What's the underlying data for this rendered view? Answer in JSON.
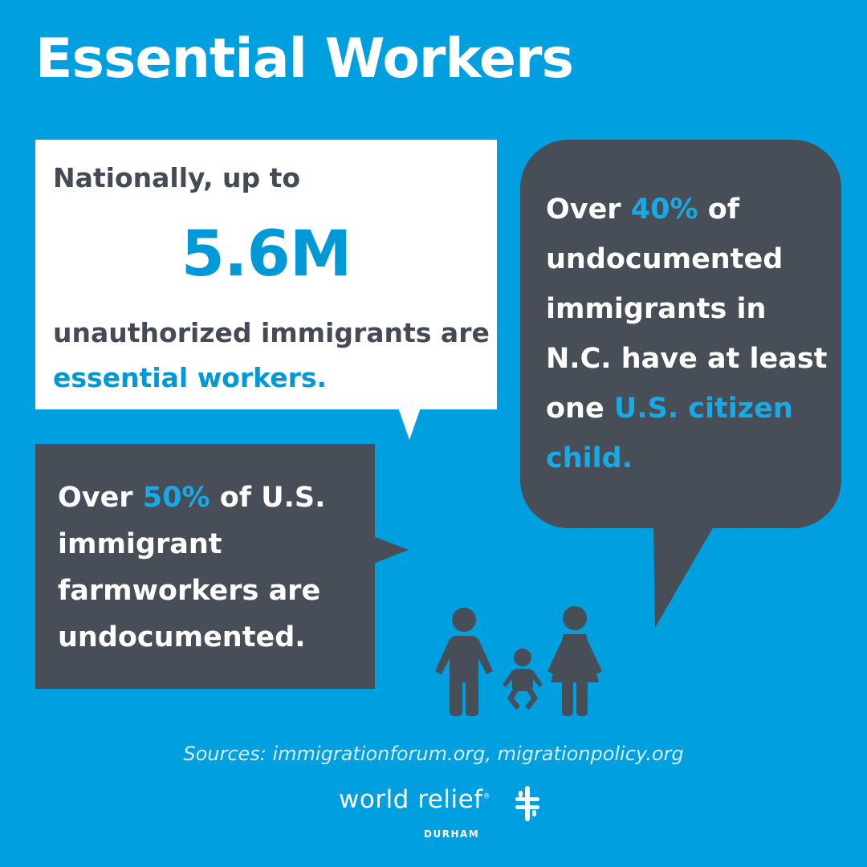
{
  "title": "Essential Workers",
  "white_bubble": {
    "intro": "Nationally, up to",
    "number": "5.6M",
    "body_plain": "unauthorized immigrants are ",
    "body_accent": "essential workers."
  },
  "farmworkers_bubble": {
    "prefix": "Over ",
    "percent": "50%",
    "suffix": " of U.S. immigrant farmworkers are undocumented."
  },
  "citizen_child_bubble": {
    "prefix": "Over ",
    "percent": "40%",
    "middle": " of undocumented immigrants in N.C. have at least one ",
    "accent": "U.S. citizen child."
  },
  "sources": "Sources: immigrationforum.org, migrationpolicy.org",
  "logo": {
    "name": "world relief",
    "registered": "®",
    "city": "DURHAM"
  },
  "icons": [
    "family-icon",
    "world-relief-logo-icon"
  ],
  "colors": {
    "background": "#009fdf",
    "dark_bubble": "#484e57",
    "accent_blue": "#0099d8",
    "dark_text": "#454b55",
    "white": "#ffffff"
  }
}
